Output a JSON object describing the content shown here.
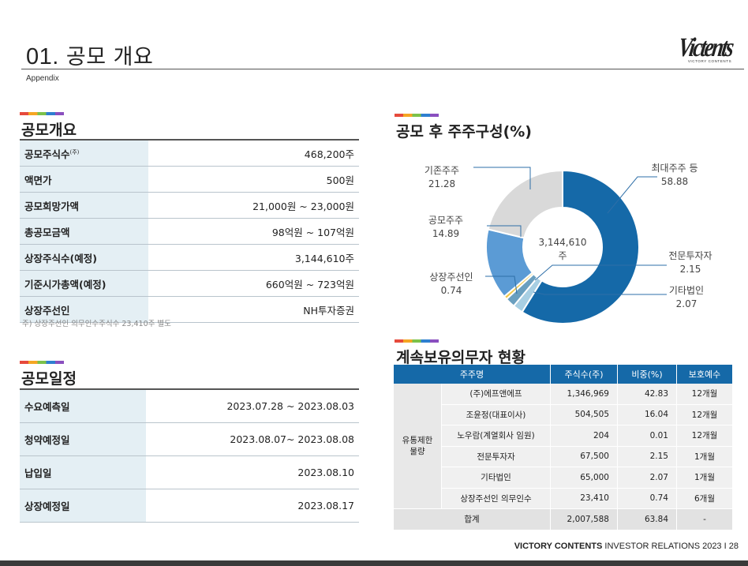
{
  "header": {
    "title_num": "01.",
    "title_text": "공모 개요",
    "subtitle": "Appendix",
    "logo_text": "Victents",
    "logo_sub": "VICTORY CONTENTS"
  },
  "overview": {
    "title": "공모개요",
    "rows": [
      {
        "label": "공모주식수",
        "sup": "(주)",
        "value": "468,200주"
      },
      {
        "label": "액면가",
        "value": "500원"
      },
      {
        "label": "공모희망가액",
        "value": "21,000원 ~ 23,000원"
      },
      {
        "label": "총공모금액",
        "value": "98억원 ~ 107억원"
      },
      {
        "label": "상장주식수(예정)",
        "value": "3,144,610주"
      },
      {
        "label": "기준시가총액(예정)",
        "value": "660억원 ~ 723억원"
      },
      {
        "label": "상장주선인",
        "value": "NH투자증권"
      }
    ],
    "footnote": "주) 상장주선인 의무인수주식수 23,410주 별도"
  },
  "schedule": {
    "title": "공모일정",
    "rows": [
      {
        "label": "수요예측일",
        "value": "2023.07.28 ~ 2023.08.03"
      },
      {
        "label": "청약예정일",
        "value": "2023.08.07~ 2023.08.08"
      },
      {
        "label": "납입일",
        "value": "2023.08.10"
      },
      {
        "label": "상장예정일",
        "value": "2023.08.17"
      }
    ]
  },
  "shareholders": {
    "title": "공모 후 주주구성(%)",
    "center_line1": "3,144,610",
    "center_line2": "주"
  },
  "chart_data": {
    "type": "pie",
    "title": "공모 후 주주구성(%)",
    "center_label": "3,144,610 주",
    "slices": [
      {
        "name": "최대주주 등",
        "value": 58.88,
        "color": "#1569a8"
      },
      {
        "name": "전문투자자",
        "value": 2.15,
        "color": "#a8cfe3"
      },
      {
        "name": "기타법인",
        "value": 2.07,
        "color": "#6a9fbf"
      },
      {
        "name": "상장주선인",
        "value": 0.74,
        "color": "#f2c94c"
      },
      {
        "name": "공모주주",
        "value": 14.89,
        "color": "#5b9bd5"
      },
      {
        "name": "기존주주",
        "value": 21.28,
        "color": "#d9d9d9"
      }
    ]
  },
  "lockup": {
    "title": "계속보유의무자 현황",
    "headers": [
      "주주명",
      "주식수(주)",
      "비중(%)",
      "보호예수"
    ],
    "group_label_1": "유통제한",
    "group_label_2": "물량",
    "rows": [
      {
        "name": "(주)에프앤에프",
        "shares": "1,346,969",
        "pct": "42.83",
        "period": "12개월"
      },
      {
        "name": "조윤정(대표이사)",
        "shares": "504,505",
        "pct": "16.04",
        "period": "12개월"
      },
      {
        "name": "노우람(계열회사 임원)",
        "shares": "204",
        "pct": "0.01",
        "period": "12개월"
      },
      {
        "name": "전문투자자",
        "shares": "67,500",
        "pct": "2.15",
        "period": "1개월"
      },
      {
        "name": "기타법인",
        "shares": "65,000",
        "pct": "2.07",
        "period": "1개월"
      },
      {
        "name": "상장주선인 의무인수",
        "shares": "23,410",
        "pct": "0.74",
        "period": "6개월"
      }
    ],
    "total": {
      "name": "합계",
      "shares": "2,007,588",
      "pct": "63.84",
      "period": "-"
    }
  },
  "footer": {
    "brand": "VICTORY CONTENTS",
    "rest": "INVESTOR RELATIONS 2023",
    "sep": "I",
    "page": "28"
  }
}
